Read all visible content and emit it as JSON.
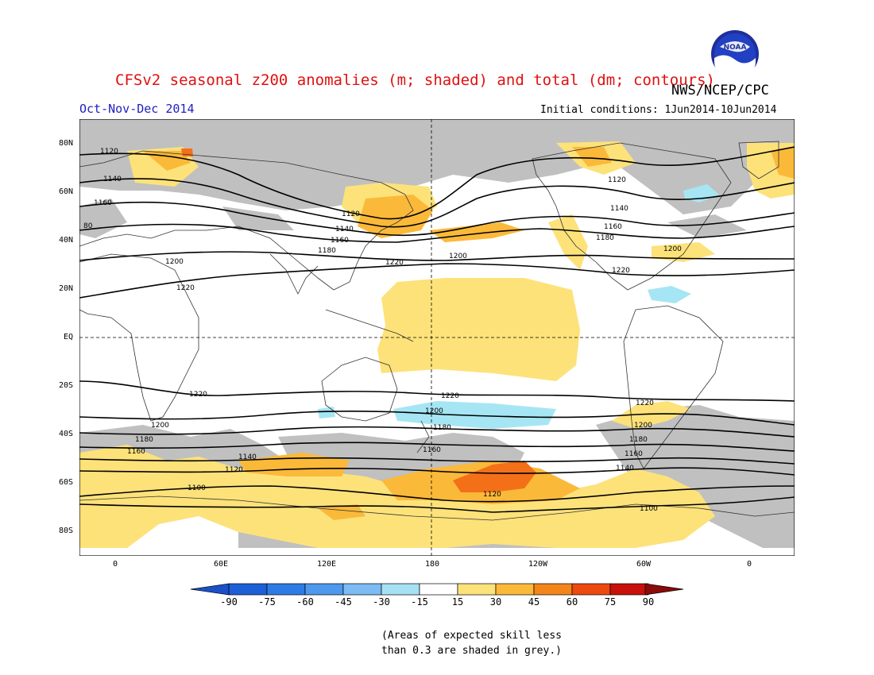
{
  "header": {
    "title": "CFSv2 seasonal z200 anomalies (m; shaded) and total (dm; contours)",
    "agency": "NWS/NCEP/CPC",
    "period": "Oct-Nov-Dec 2014",
    "initial_conditions": "Initial conditions: 1Jun2014-10Jun2014",
    "logo_text": "NOAA"
  },
  "axes": {
    "lat_labels": [
      "80N",
      "60N",
      "40N",
      "20N",
      "EQ",
      "20S",
      "40S",
      "60S",
      "80S"
    ],
    "lon_labels": [
      "0",
      "60E",
      "120E",
      "180",
      "120W",
      "60W",
      "0"
    ]
  },
  "contour_labels": {
    "c1180": "1180",
    "c1200": "1200",
    "c1220": "1220",
    "c1160": "1160",
    "c1140": "1140",
    "c1120": "1120",
    "c1100": "1100",
    "c80": "80"
  },
  "colorbar": {
    "labels": [
      "-90",
      "-75",
      "-60",
      "-45",
      "-30",
      "-15",
      "15",
      "30",
      "45",
      "60",
      "75",
      "90"
    ],
    "colors": [
      "#1c5fd6",
      "#2f7be6",
      "#4e98ee",
      "#7cbbf4",
      "#a6e0f4",
      "#ffffff",
      "#fde27a",
      "#fbb93a",
      "#f38519",
      "#ec4a0e",
      "#c8110a",
      "#8f0b0b"
    ],
    "left_arrow_color": "#1a50c8",
    "right_arrow_color": "#8b0a0a"
  },
  "footnote": {
    "line1": "(Areas of expected skill less",
    "line2": "than 0.3 are shaded in grey.)"
  },
  "colors": {
    "skill_grey": "#c0c0c0",
    "pos_yellow": "#fde27a",
    "pos_orange": "#fbb93a",
    "pos_dark_orange": "#f37019",
    "neg_lightblue": "#a6e6f4",
    "title_red": "#e01010",
    "period_blue": "#2020c0"
  }
}
